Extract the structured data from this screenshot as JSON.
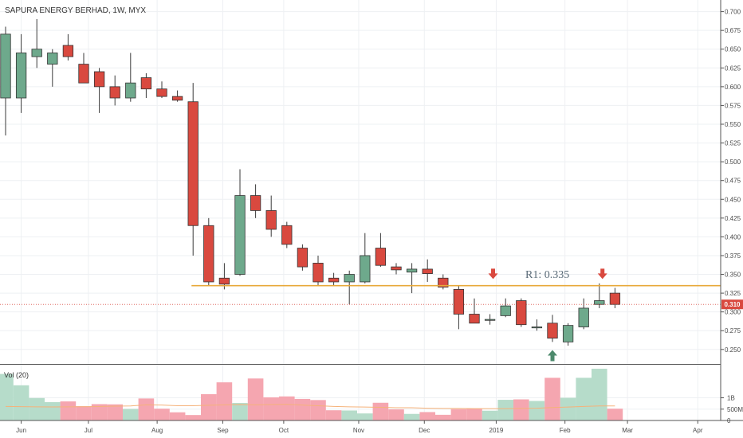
{
  "chart_data": {
    "type": "candlestick",
    "title": "SAPURA ENERGY BERHAD, 1W, MYX",
    "price_axis": {
      "ylim": [
        0.23,
        0.71
      ],
      "ticks": [
        "0.700",
        "0.675",
        "0.650",
        "0.625",
        "0.600",
        "0.575",
        "0.550",
        "0.525",
        "0.500",
        "0.475",
        "0.450",
        "0.425",
        "0.400",
        "0.375",
        "0.350",
        "0.325",
        "0.300",
        "0.275",
        "0.250"
      ]
    },
    "x_ticks": [
      {
        "label": "Jun",
        "week": 1.0
      },
      {
        "label": "Jul",
        "week": 5.3
      },
      {
        "label": "Aug",
        "week": 9.7
      },
      {
        "label": "Sep",
        "week": 13.9
      },
      {
        "label": "Oct",
        "week": 17.8
      },
      {
        "label": "Nov",
        "week": 22.6
      },
      {
        "label": "Dec",
        "week": 26.8
      },
      {
        "label": "2019",
        "week": 31.4
      },
      {
        "label": "Feb",
        "week": 35.8
      },
      {
        "label": "Mar",
        "week": 39.8
      },
      {
        "label": "Apr",
        "week": 44.3
      }
    ],
    "candles": [
      {
        "o": 0.585,
        "h": 0.68,
        "l": 0.535,
        "c": 0.67
      },
      {
        "o": 0.585,
        "h": 0.67,
        "l": 0.565,
        "c": 0.645
      },
      {
        "o": 0.64,
        "h": 0.69,
        "l": 0.625,
        "c": 0.65
      },
      {
        "o": 0.63,
        "h": 0.65,
        "l": 0.6,
        "c": 0.645
      },
      {
        "o": 0.655,
        "h": 0.67,
        "l": 0.635,
        "c": 0.64
      },
      {
        "o": 0.63,
        "h": 0.645,
        "l": 0.605,
        "c": 0.605
      },
      {
        "o": 0.62,
        "h": 0.625,
        "l": 0.565,
        "c": 0.6
      },
      {
        "o": 0.6,
        "h": 0.615,
        "l": 0.575,
        "c": 0.585
      },
      {
        "o": 0.585,
        "h": 0.645,
        "l": 0.58,
        "c": 0.605
      },
      {
        "o": 0.612,
        "h": 0.618,
        "l": 0.585,
        "c": 0.597
      },
      {
        "o": 0.597,
        "h": 0.607,
        "l": 0.585,
        "c": 0.587
      },
      {
        "o": 0.587,
        "h": 0.595,
        "l": 0.58,
        "c": 0.582
      },
      {
        "o": 0.58,
        "h": 0.605,
        "l": 0.375,
        "c": 0.415
      },
      {
        "o": 0.415,
        "h": 0.425,
        "l": 0.335,
        "c": 0.34
      },
      {
        "o": 0.345,
        "h": 0.365,
        "l": 0.33,
        "c": 0.337
      },
      {
        "o": 0.35,
        "h": 0.49,
        "l": 0.348,
        "c": 0.455
      },
      {
        "o": 0.455,
        "h": 0.47,
        "l": 0.425,
        "c": 0.435
      },
      {
        "o": 0.435,
        "h": 0.455,
        "l": 0.4,
        "c": 0.41
      },
      {
        "o": 0.415,
        "h": 0.42,
        "l": 0.385,
        "c": 0.39
      },
      {
        "o": 0.385,
        "h": 0.39,
        "l": 0.355,
        "c": 0.36
      },
      {
        "o": 0.365,
        "h": 0.375,
        "l": 0.335,
        "c": 0.34
      },
      {
        "o": 0.345,
        "h": 0.352,
        "l": 0.335,
        "c": 0.34
      },
      {
        "o": 0.34,
        "h": 0.355,
        "l": 0.31,
        "c": 0.35
      },
      {
        "o": 0.34,
        "h": 0.405,
        "l": 0.338,
        "c": 0.375
      },
      {
        "o": 0.385,
        "h": 0.405,
        "l": 0.36,
        "c": 0.362
      },
      {
        "o": 0.36,
        "h": 0.365,
        "l": 0.35,
        "c": 0.356
      },
      {
        "o": 0.353,
        "h": 0.365,
        "l": 0.325,
        "c": 0.357
      },
      {
        "o": 0.357,
        "h": 0.37,
        "l": 0.34,
        "c": 0.351
      },
      {
        "o": 0.345,
        "h": 0.35,
        "l": 0.33,
        "c": 0.333
      },
      {
        "o": 0.33,
        "h": 0.335,
        "l": 0.277,
        "c": 0.297
      },
      {
        "o": 0.297,
        "h": 0.318,
        "l": 0.285,
        "c": 0.285
      },
      {
        "o": 0.29,
        "h": 0.297,
        "l": 0.283,
        "c": 0.29
      },
      {
        "o": 0.295,
        "h": 0.318,
        "l": 0.293,
        "c": 0.308
      },
      {
        "o": 0.315,
        "h": 0.318,
        "l": 0.28,
        "c": 0.283
      },
      {
        "o": 0.28,
        "h": 0.29,
        "l": 0.275,
        "c": 0.28
      },
      {
        "o": 0.285,
        "h": 0.296,
        "l": 0.26,
        "c": 0.265
      },
      {
        "o": 0.26,
        "h": 0.285,
        "l": 0.255,
        "c": 0.282
      },
      {
        "o": 0.28,
        "h": 0.318,
        "l": 0.277,
        "c": 0.305
      },
      {
        "o": 0.31,
        "h": 0.338,
        "l": 0.305,
        "c": 0.315
      },
      {
        "o": 0.325,
        "h": 0.332,
        "l": 0.305,
        "c": 0.31
      }
    ],
    "resistance": {
      "label": "R1: 0.335",
      "value": 0.335
    },
    "current_price": {
      "label": "0.310",
      "value": 0.31
    },
    "arrows": [
      {
        "type": "down",
        "week": 31.2,
        "price": 0.347
      },
      {
        "type": "down",
        "week": 38.2,
        "price": 0.347
      },
      {
        "type": "up",
        "week": 35.0,
        "price": 0.245
      }
    ],
    "volume": {
      "label": "Vol (20)",
      "ylim": [
        0,
        2000
      ],
      "ticks": [
        "1B",
        "500M",
        "0"
      ],
      "values": [
        2050,
        1550,
        990,
        810,
        840,
        630,
        720,
        710,
        510,
        970,
        520,
        360,
        240,
        1160,
        1680,
        770,
        1850,
        1020,
        1060,
        950,
        900,
        450,
        440,
        310,
        780,
        490,
        290,
        370,
        250,
        500,
        530,
        430,
        910,
        930,
        860,
        1880,
        1000,
        1880,
        2280,
        520
      ],
      "ma": [
        620,
        610,
        600,
        595,
        600,
        605,
        615,
        630,
        640,
        690,
        680,
        650,
        650,
        670,
        690,
        700,
        690,
        700,
        710,
        680,
        650,
        620,
        600,
        590,
        580,
        560,
        560,
        540,
        530,
        530,
        520,
        520,
        520,
        530,
        540,
        570,
        590,
        620,
        640,
        640
      ]
    },
    "colors": {
      "up": "#6ea98c",
      "down": "#d9493f",
      "up_vol": "#b6dcca",
      "down_vol": "#f5a6b0",
      "ma": "#f5b27a",
      "resistance": "#e8a93a",
      "price_line": "#d9493f"
    },
    "grid": true
  }
}
